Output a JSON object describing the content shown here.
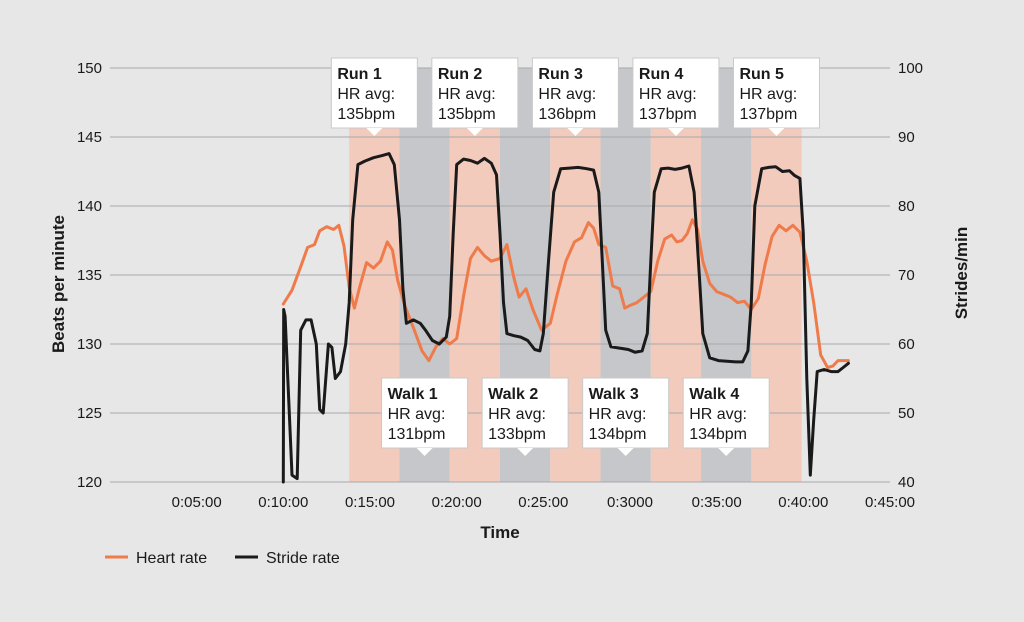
{
  "chart_data": {
    "type": "line",
    "xlabel": "Time",
    "ylabel_left": "Beats per minute",
    "ylabel_right": "Strides/min",
    "ylim_left": [
      120,
      150
    ],
    "ylim_right": [
      40,
      100
    ],
    "xlim_min": [
      0,
      45
    ],
    "x_tick_values_min": [
      5,
      10,
      15,
      20,
      25,
      30,
      35,
      40,
      45
    ],
    "x_tick_labels": [
      "0:05:00",
      "0:10:00",
      "0:15:00",
      "0:20:00",
      "0:25:00",
      "0:3000",
      "0:35:00",
      "0:40:00",
      "0:45:00"
    ],
    "y_left_ticks": [
      120,
      125,
      130,
      135,
      140,
      145,
      150
    ],
    "y_right_ticks": [
      40,
      50,
      60,
      70,
      80,
      90,
      100
    ],
    "grid": "horizontal",
    "legend_position": "bottom-left",
    "colors": {
      "heart_rate": "#f07b4a",
      "stride_rate": "#1a1a1a",
      "run_band": "#f2cbbd",
      "walk_band": "#c5c7ca",
      "grid": "#a9a9ab"
    },
    "phases": [
      {
        "type": "run",
        "start": 13.8,
        "end": 16.7
      },
      {
        "type": "walk",
        "start": 16.7,
        "end": 19.6
      },
      {
        "type": "run",
        "start": 19.6,
        "end": 22.5
      },
      {
        "type": "walk",
        "start": 22.5,
        "end": 25.4
      },
      {
        "type": "run",
        "start": 25.4,
        "end": 28.3
      },
      {
        "type": "walk",
        "start": 28.3,
        "end": 31.2
      },
      {
        "type": "run",
        "start": 31.2,
        "end": 34.1
      },
      {
        "type": "walk",
        "start": 34.1,
        "end": 37.0
      },
      {
        "type": "run",
        "start": 37.0,
        "end": 39.9
      }
    ],
    "callouts": [
      {
        "title": "Run 1",
        "line1": "HR avg:",
        "line2": "135bpm",
        "position": "top",
        "x": 15.25
      },
      {
        "title": "Run 2",
        "line1": "HR avg:",
        "line2": "135bpm",
        "position": "top",
        "x": 21.05
      },
      {
        "title": "Run 3",
        "line1": "HR avg:",
        "line2": "136bpm",
        "position": "top",
        "x": 26.85
      },
      {
        "title": "Run 4",
        "line1": "HR avg:",
        "line2": "137bpm",
        "position": "top",
        "x": 32.65
      },
      {
        "title": "Run 5",
        "line1": "HR avg:",
        "line2": "137bpm",
        "position": "top",
        "x": 38.45
      },
      {
        "title": "Walk 1",
        "line1": "HR avg:",
        "line2": "131bpm",
        "position": "bottom",
        "x": 18.15
      },
      {
        "title": "Walk 2",
        "line1": "HR avg:",
        "line2": "133bpm",
        "position": "bottom",
        "x": 23.95
      },
      {
        "title": "Walk 3",
        "line1": "HR avg:",
        "line2": "134bpm",
        "position": "bottom",
        "x": 29.75
      },
      {
        "title": "Walk 4",
        "line1": "HR avg:",
        "line2": "134bpm",
        "position": "bottom",
        "x": 35.55
      }
    ],
    "series": [
      {
        "name": "Heart rate",
        "axis": "left",
        "points": [
          [
            10.0,
            132.9
          ],
          [
            10.5,
            133.9
          ],
          [
            11.0,
            135.6
          ],
          [
            11.4,
            137.0
          ],
          [
            11.8,
            137.2
          ],
          [
            12.1,
            138.2
          ],
          [
            12.5,
            138.5
          ],
          [
            12.9,
            138.3
          ],
          [
            13.2,
            138.6
          ],
          [
            13.5,
            137.1
          ],
          [
            13.8,
            134.1
          ],
          [
            14.1,
            132.6
          ],
          [
            14.4,
            134.1
          ],
          [
            14.8,
            135.9
          ],
          [
            15.2,
            135.5
          ],
          [
            15.6,
            136.0
          ],
          [
            16.0,
            137.4
          ],
          [
            16.3,
            136.8
          ],
          [
            16.6,
            134.6
          ],
          [
            17.0,
            132.8
          ],
          [
            17.5,
            131.2
          ],
          [
            18.0,
            129.5
          ],
          [
            18.4,
            128.8
          ],
          [
            18.8,
            129.8
          ],
          [
            19.2,
            130.4
          ],
          [
            19.6,
            130.0
          ],
          [
            20.0,
            130.4
          ],
          [
            20.4,
            133.5
          ],
          [
            20.8,
            136.2
          ],
          [
            21.2,
            137.0
          ],
          [
            21.6,
            136.4
          ],
          [
            22.0,
            136.0
          ],
          [
            22.5,
            136.2
          ],
          [
            22.9,
            137.2
          ],
          [
            23.3,
            134.8
          ],
          [
            23.6,
            133.4
          ],
          [
            24.0,
            134.0
          ],
          [
            24.4,
            132.5
          ],
          [
            24.9,
            131.0
          ],
          [
            25.4,
            131.5
          ],
          [
            25.8,
            133.6
          ],
          [
            26.3,
            136.0
          ],
          [
            26.8,
            137.4
          ],
          [
            27.2,
            137.7
          ],
          [
            27.6,
            138.8
          ],
          [
            27.9,
            138.4
          ],
          [
            28.2,
            137.2
          ],
          [
            28.6,
            137.0
          ],
          [
            29.0,
            134.2
          ],
          [
            29.4,
            134.0
          ],
          [
            29.7,
            132.6
          ],
          [
            30.0,
            132.8
          ],
          [
            30.4,
            133.0
          ],
          [
            30.8,
            133.4
          ],
          [
            31.2,
            133.8
          ],
          [
            31.6,
            136.0
          ],
          [
            32.0,
            137.6
          ],
          [
            32.4,
            137.9
          ],
          [
            32.7,
            137.4
          ],
          [
            33.0,
            137.5
          ],
          [
            33.3,
            138.0
          ],
          [
            33.6,
            139.0
          ],
          [
            33.9,
            138.3
          ],
          [
            34.2,
            136.0
          ],
          [
            34.6,
            134.4
          ],
          [
            35.0,
            133.8
          ],
          [
            35.4,
            133.6
          ],
          [
            35.8,
            133.4
          ],
          [
            36.2,
            133.0
          ],
          [
            36.6,
            133.1
          ],
          [
            37.0,
            132.5
          ],
          [
            37.4,
            133.3
          ],
          [
            37.8,
            135.8
          ],
          [
            38.2,
            137.8
          ],
          [
            38.6,
            138.6
          ],
          [
            39.0,
            138.2
          ],
          [
            39.4,
            138.6
          ],
          [
            39.8,
            138.1
          ],
          [
            40.2,
            136.0
          ],
          [
            40.6,
            133.0
          ],
          [
            41.0,
            129.2
          ],
          [
            41.4,
            128.3
          ],
          [
            41.7,
            128.4
          ],
          [
            42.0,
            128.8
          ],
          [
            42.3,
            128.8
          ],
          [
            42.6,
            128.8
          ]
        ]
      },
      {
        "name": "Stride rate",
        "axis": "right",
        "points": [
          [
            10.0,
            40.0
          ],
          [
            10.02,
            65.0
          ],
          [
            10.1,
            64.0
          ],
          [
            10.5,
            41.0
          ],
          [
            10.8,
            40.5
          ],
          [
            11.0,
            62.0
          ],
          [
            11.3,
            63.5
          ],
          [
            11.6,
            63.5
          ],
          [
            11.9,
            60.0
          ],
          [
            12.1,
            50.5
          ],
          [
            12.3,
            50.0
          ],
          [
            12.6,
            60.0
          ],
          [
            12.8,
            59.5
          ],
          [
            13.0,
            55.0
          ],
          [
            13.3,
            56.0
          ],
          [
            13.6,
            60.0
          ],
          [
            13.8,
            66.0
          ],
          [
            14.0,
            78.0
          ],
          [
            14.3,
            86.0
          ],
          [
            14.7,
            86.5
          ],
          [
            15.2,
            87.0
          ],
          [
            15.7,
            87.3
          ],
          [
            16.1,
            87.6
          ],
          [
            16.4,
            86.0
          ],
          [
            16.7,
            78.0
          ],
          [
            16.9,
            68.0
          ],
          [
            17.1,
            63.0
          ],
          [
            17.5,
            63.5
          ],
          [
            17.9,
            63.0
          ],
          [
            18.2,
            62.0
          ],
          [
            18.6,
            60.5
          ],
          [
            19.0,
            60.0
          ],
          [
            19.4,
            61.0
          ],
          [
            19.6,
            64.0
          ],
          [
            19.8,
            76.0
          ],
          [
            20.0,
            86.0
          ],
          [
            20.4,
            86.8
          ],
          [
            20.8,
            86.6
          ],
          [
            21.2,
            86.2
          ],
          [
            21.6,
            86.9
          ],
          [
            22.0,
            86.2
          ],
          [
            22.3,
            84.5
          ],
          [
            22.5,
            76.0
          ],
          [
            22.7,
            66.0
          ],
          [
            22.9,
            61.5
          ],
          [
            23.3,
            61.2
          ],
          [
            23.7,
            61.0
          ],
          [
            24.1,
            60.5
          ],
          [
            24.5,
            59.2
          ],
          [
            24.8,
            59.0
          ],
          [
            25.0,
            61.5
          ],
          [
            25.3,
            72.0
          ],
          [
            25.6,
            82.0
          ],
          [
            26.0,
            85.4
          ],
          [
            26.5,
            85.5
          ],
          [
            27.0,
            85.6
          ],
          [
            27.5,
            85.4
          ],
          [
            27.9,
            85.2
          ],
          [
            28.2,
            82.0
          ],
          [
            28.4,
            72.0
          ],
          [
            28.6,
            62.0
          ],
          [
            28.9,
            59.6
          ],
          [
            29.4,
            59.4
          ],
          [
            29.9,
            59.2
          ],
          [
            30.3,
            58.8
          ],
          [
            30.7,
            59.0
          ],
          [
            31.0,
            61.5
          ],
          [
            31.2,
            72.0
          ],
          [
            31.4,
            82.0
          ],
          [
            31.8,
            85.4
          ],
          [
            32.2,
            85.5
          ],
          [
            32.6,
            85.3
          ],
          [
            33.0,
            85.5
          ],
          [
            33.4,
            85.8
          ],
          [
            33.7,
            82.0
          ],
          [
            34.0,
            70.0
          ],
          [
            34.2,
            61.5
          ],
          [
            34.6,
            58.0
          ],
          [
            35.1,
            57.6
          ],
          [
            35.6,
            57.5
          ],
          [
            36.1,
            57.4
          ],
          [
            36.5,
            57.4
          ],
          [
            36.8,
            59.0
          ],
          [
            37.0,
            66.0
          ],
          [
            37.2,
            80.0
          ],
          [
            37.6,
            85.4
          ],
          [
            38.0,
            85.6
          ],
          [
            38.4,
            85.7
          ],
          [
            38.8,
            85.0
          ],
          [
            39.2,
            85.1
          ],
          [
            39.5,
            84.4
          ],
          [
            39.8,
            84.0
          ],
          [
            40.0,
            76.0
          ],
          [
            40.2,
            55.0
          ],
          [
            40.4,
            41.0
          ],
          [
            40.6,
            49.0
          ],
          [
            40.8,
            56.0
          ],
          [
            41.2,
            56.3
          ],
          [
            41.6,
            56.0
          ],
          [
            42.0,
            56.0
          ],
          [
            42.3,
            56.6
          ],
          [
            42.6,
            57.2
          ]
        ]
      }
    ]
  }
}
